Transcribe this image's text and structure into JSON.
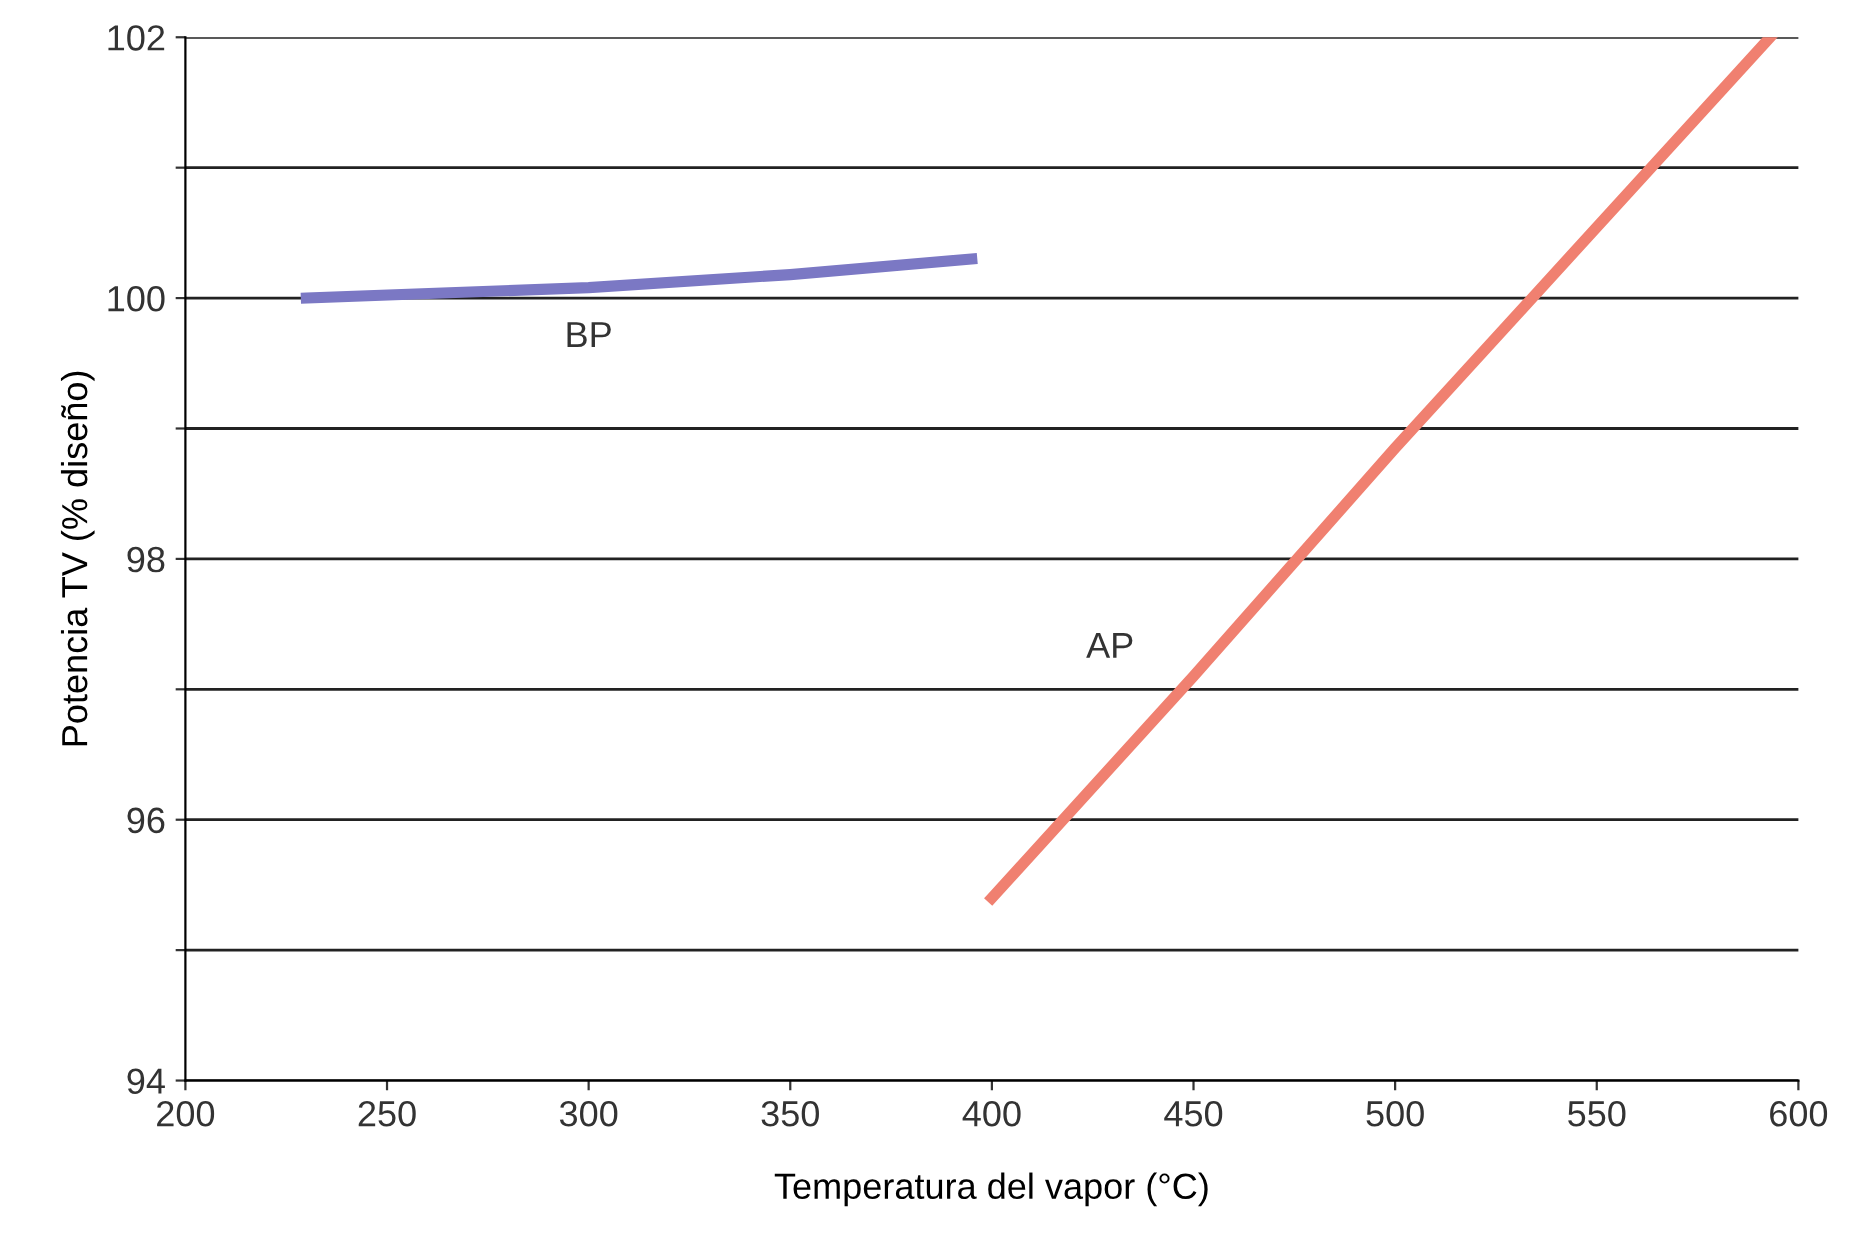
{
  "chart_data": {
    "type": "line",
    "xlabel": "Temperatura del vapor (°C)",
    "ylabel": "Potencia TV (% diseño)",
    "series": [
      {
        "name": "BP",
        "color": "#7b78c4",
        "x": [
          230,
          300,
          350,
          395
        ],
        "values": [
          100.0,
          100.08,
          100.18,
          100.3
        ]
      },
      {
        "name": "AP",
        "color": "#f08070",
        "x": [
          400,
          450,
          500,
          593
        ],
        "values": [
          95.4,
          97.1,
          98.85,
          102.0
        ]
      }
    ],
    "xlim": [
      200,
      600
    ],
    "xticks": [
      200,
      250,
      300,
      350,
      400,
      450,
      500,
      550,
      600
    ],
    "ylim": [
      94,
      102
    ],
    "yticks": [
      94,
      {
        "value": 95,
        "label": null
      },
      96,
      {
        "value": 97,
        "label": null
      },
      98,
      {
        "value": 99,
        "label": null
      },
      100,
      {
        "value": 101,
        "label": null
      },
      102
    ],
    "grid": "y",
    "legend": false,
    "marker": "none",
    "line_style": "solid"
  }
}
